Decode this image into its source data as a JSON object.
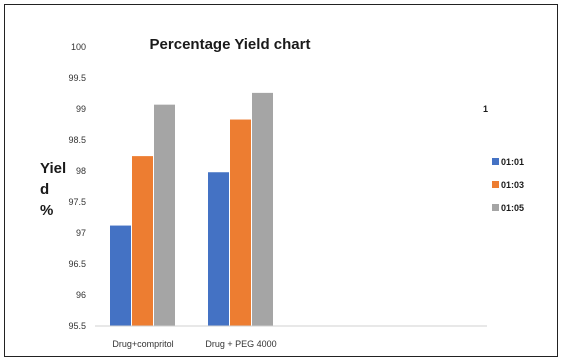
{
  "chart_data": {
    "type": "bar",
    "title": "Percentage Yield chart",
    "ylabel_lines": [
      "Yiel",
      "d",
      "%"
    ],
    "categories": [
      "Drug+compritol",
      "Drug + PEG 4000"
    ],
    "series": [
      {
        "name": "01:01",
        "values": [
          97.12,
          97.98
        ],
        "color": "#4472C4"
      },
      {
        "name": "01:03",
        "values": [
          98.24,
          98.83
        ],
        "color": "#ED7D31"
      },
      {
        "name": "01:05",
        "values": [
          99.07,
          99.26
        ],
        "color": "#A5A5A5"
      }
    ],
    "ylim": [
      95.5,
      100
    ],
    "yticks": [
      "95.5",
      "96",
      "96.5",
      "97",
      "97.5",
      "98",
      "98.5",
      "99",
      "99.5",
      "100"
    ],
    "grid": false,
    "legend_position": "right",
    "annotation": "1"
  }
}
